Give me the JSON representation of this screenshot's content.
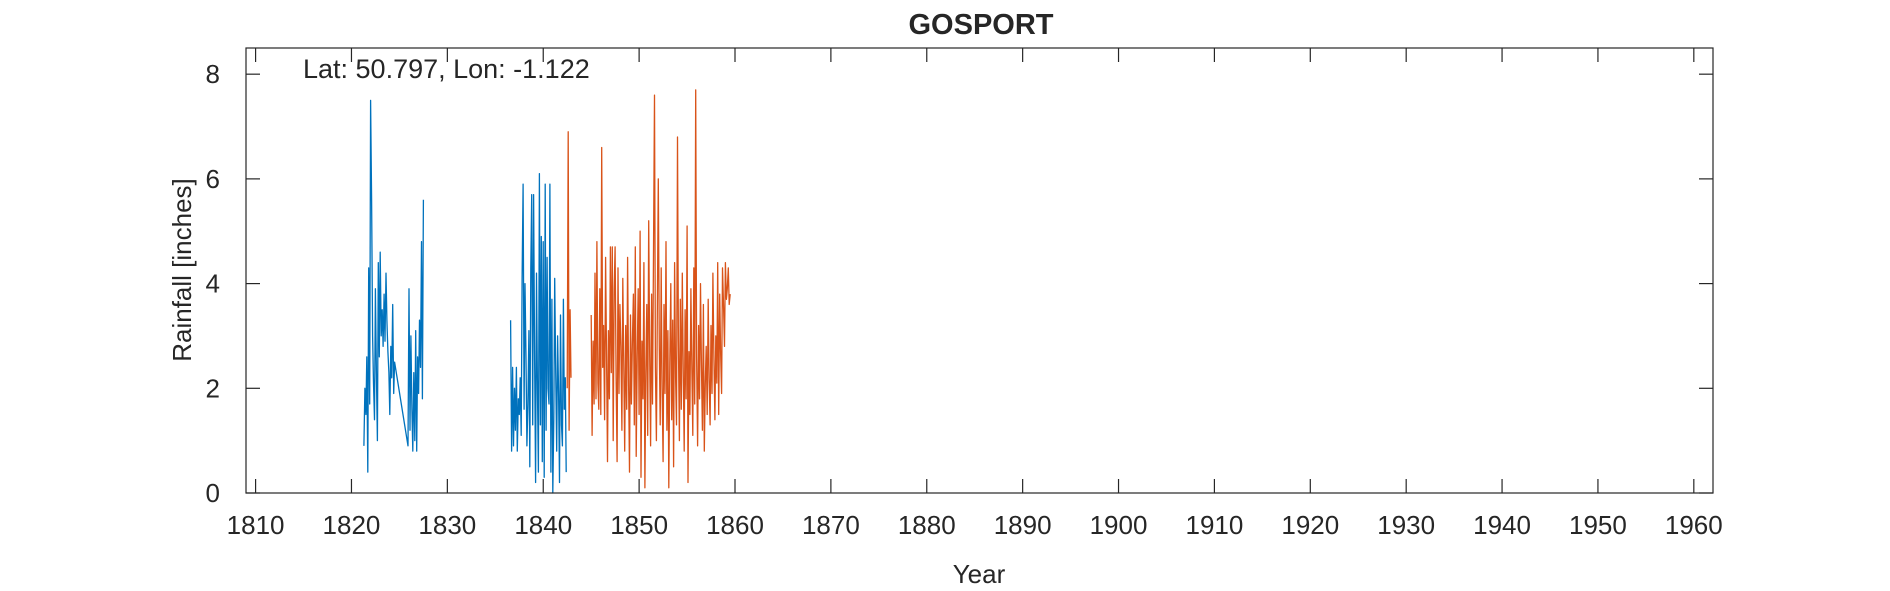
{
  "chart_data": {
    "type": "line",
    "title": "GOSPORT",
    "annotation": "Lat: 50.797, Lon: -1.122",
    "xlabel": "Year",
    "ylabel": "Rainfall [inches]",
    "xlim": [
      1809,
      1962
    ],
    "ylim": [
      0,
      8.5
    ],
    "xticks": [
      1810,
      1820,
      1830,
      1840,
      1850,
      1860,
      1870,
      1880,
      1890,
      1900,
      1910,
      1920,
      1930,
      1940,
      1950,
      1960
    ],
    "yticks": [
      0,
      2,
      4,
      6,
      8
    ],
    "grid": false,
    "colors": {
      "series_1": "#0072BD",
      "series_2": "#D95319",
      "axis": "#262626"
    },
    "series": [
      {
        "x": [
          1821.3,
          1821.4,
          1821.5,
          1821.6,
          1821.7,
          1821.8,
          1821.9,
          1822.0,
          1822.1,
          1822.2,
          1822.3,
          1822.4,
          1822.5,
          1822.6,
          1822.7,
          1822.8,
          1822.9,
          1823.0,
          1823.1,
          1823.2,
          1823.3,
          1823.4,
          1823.5,
          1823.6,
          1823.7,
          1823.8,
          1823.9,
          1824.0,
          1824.1,
          1824.2,
          1824.3,
          1824.4,
          1824.5,
          1825.9,
          1826.0,
          1826.1,
          1826.2,
          1826.3,
          1826.4,
          1826.5,
          1826.6,
          1826.7,
          1826.8,
          1826.9,
          1827.0,
          1827.1,
          1827.2,
          1827.3,
          1827.4,
          1827.5,
          null,
          1836.6,
          1836.7,
          1836.8,
          1836.9,
          1837.0,
          1837.1,
          1837.2,
          1837.3,
          1837.4,
          1837.5,
          1837.6,
          1837.7,
          1837.8,
          1837.9,
          1838.0,
          1838.1,
          1838.2,
          1838.3,
          1838.4,
          1838.5,
          1838.6,
          1838.7,
          1838.8,
          1838.9,
          1839.0,
          1839.1,
          1839.2,
          1839.3,
          1839.4,
          1839.5,
          1839.6,
          1839.7,
          1839.8,
          1839.9,
          1840.0,
          1840.1,
          1840.2,
          1840.3,
          1840.4,
          1840.5,
          1840.6,
          1840.7,
          1840.8,
          1840.9,
          1841.0,
          1841.1,
          1841.2,
          1841.3,
          1841.4,
          1841.5,
          1841.6,
          1841.7,
          1841.8,
          1841.9,
          1842.0,
          1842.1,
          1842.2,
          1842.3,
          1842.4
        ],
        "values": [
          0.9,
          2.0,
          1.5,
          2.6,
          0.4,
          4.3,
          1.7,
          7.5,
          5.6,
          3.0,
          2.1,
          1.4,
          3.9,
          2.3,
          1.0,
          4.4,
          2.6,
          4.6,
          3.0,
          3.5,
          2.8,
          3.8,
          2.9,
          4.2,
          3.3,
          2.7,
          2.3,
          1.5,
          2.8,
          2.2,
          3.6,
          1.9,
          2.5,
          0.9,
          3.9,
          1.2,
          3.0,
          1.6,
          0.8,
          2.3,
          1.0,
          3.1,
          0.8,
          2.6,
          1.9,
          3.3,
          2.4,
          4.8,
          1.8,
          5.6,
          null,
          3.3,
          0.8,
          2.4,
          0.9,
          2.0,
          1.2,
          2.4,
          0.8,
          1.8,
          1.5,
          2.2,
          1.1,
          4.1,
          5.9,
          1.6,
          4.0,
          2.6,
          0.9,
          1.7,
          3.1,
          0.5,
          4.3,
          5.7,
          1.3,
          5.7,
          2.6,
          0.2,
          4.2,
          1.9,
          0.4,
          6.1,
          1.3,
          4.9,
          0.6,
          4.8,
          0.3,
          5.9,
          1.2,
          4.5,
          2.0,
          1.7,
          5.9,
          0.4,
          3.7,
          0.0,
          1.4,
          4.1,
          2.3,
          0.8,
          3.0,
          1.9,
          0.2,
          3.4,
          1.3,
          0.9,
          3.7,
          1.6,
          2.2,
          0.4
        ]
      },
      {
        "x": [
          1842.5,
          1842.6,
          1842.7,
          1842.8,
          1842.9,
          null,
          1845.0,
          1845.1,
          1845.2,
          1845.3,
          1845.4,
          1845.5,
          1845.6,
          1845.7,
          1845.8,
          1845.9,
          1846.0,
          1846.1,
          1846.2,
          1846.3,
          1846.4,
          1846.5,
          1846.6,
          1846.7,
          1846.8,
          1846.9,
          1847.0,
          1847.1,
          1847.2,
          1847.3,
          1847.4,
          1847.5,
          1847.6,
          1847.7,
          1847.8,
          1847.9,
          1848.0,
          1848.1,
          1848.2,
          1848.3,
          1848.4,
          1848.5,
          1848.6,
          1848.7,
          1848.8,
          1848.9,
          1849.0,
          1849.1,
          1849.2,
          1849.3,
          1849.4,
          1849.5,
          1849.6,
          1849.7,
          1849.8,
          1849.9,
          1850.0,
          1850.1,
          1850.2,
          1850.3,
          1850.4,
          1850.5,
          1850.6,
          1850.7,
          1850.8,
          1850.9,
          1851.0,
          1851.1,
          1851.2,
          1851.3,
          1851.4,
          1851.5,
          1851.6,
          1851.7,
          1851.8,
          1851.9,
          1852.0,
          1852.1,
          1852.2,
          1852.3,
          1852.4,
          1852.5,
          1852.6,
          1852.7,
          1852.8,
          1852.9,
          1853.0,
          1853.1,
          1853.2,
          1853.3,
          1853.4,
          1853.5,
          1853.6,
          1853.7,
          1853.8,
          1853.9,
          1854.0,
          1854.1,
          1854.2,
          1854.3,
          1854.4,
          1854.5,
          1854.6,
          1854.7,
          1854.8,
          1854.9,
          1855.0,
          1855.1,
          1855.2,
          1855.3,
          1855.4,
          1855.5,
          1855.6,
          1855.7,
          1855.8,
          1855.9,
          1856.0,
          1856.1,
          1856.2,
          1856.3,
          1856.4,
          1856.5,
          1856.6,
          1856.7,
          1856.8,
          1856.9,
          1857.0,
          1857.1,
          1857.2,
          1857.3,
          1857.4,
          1857.5,
          1857.6,
          1857.7,
          1857.8,
          1857.9,
          1858.0,
          1858.1,
          1858.2,
          1858.3,
          1858.4,
          1858.5,
          1858.6,
          1858.7,
          1858.8,
          1858.9,
          1859.0,
          1859.1,
          1859.2,
          1859.3,
          1859.4,
          1859.5
        ],
        "values": [
          2.0,
          6.9,
          1.2,
          3.5,
          2.2,
          null,
          3.4,
          1.1,
          2.9,
          1.7,
          4.2,
          1.8,
          4.8,
          2.1,
          1.6,
          3.9,
          1.5,
          6.6,
          2.4,
          3.2,
          1.4,
          4.5,
          2.7,
          0.6,
          3.1,
          1.8,
          4.7,
          2.3,
          4.7,
          1.0,
          3.9,
          4.7,
          2.2,
          0.6,
          4.3,
          1.9,
          3.6,
          2.8,
          1.2,
          4.1,
          2.4,
          0.8,
          3.2,
          1.6,
          4.5,
          2.1,
          0.4,
          3.4,
          1.7,
          2.9,
          3.8,
          1.3,
          4.7,
          0.7,
          2.6,
          3.9,
          1.5,
          5.0,
          0.3,
          2.9,
          1.8,
          4.4,
          0.1,
          2.3,
          3.6,
          1.1,
          5.2,
          2.6,
          0.9,
          3.8,
          1.7,
          4.6,
          7.6,
          2.4,
          1.0,
          3.4,
          6.0,
          2.8,
          1.3,
          4.3,
          2.0,
          0.6,
          3.6,
          1.9,
          4.8,
          1.2,
          3.1,
          0.1,
          2.5,
          4.0,
          1.4,
          3.3,
          0.5,
          4.4,
          2.2,
          1.3,
          6.8,
          2.9,
          1.0,
          3.7,
          1.6,
          4.2,
          2.4,
          0.8,
          3.5,
          1.8,
          5.1,
          0.2,
          2.7,
          1.5,
          3.9,
          2.3,
          1.1,
          4.3,
          1.7,
          7.7,
          2.6,
          0.9,
          3.2,
          1.8,
          4.0,
          2.5,
          1.2,
          3.6,
          0.8,
          2.1,
          2.8,
          1.5,
          3.7,
          2.2,
          1.3,
          3.2,
          1.9,
          4.2,
          2.6,
          1.4,
          3.0,
          2.1,
          4.4,
          1.5,
          3.8,
          2.7,
          1.9,
          4.3,
          3.6,
          2.8,
          4.4,
          3.7,
          3.9,
          4.3,
          3.6,
          3.8
        ]
      }
    ]
  }
}
